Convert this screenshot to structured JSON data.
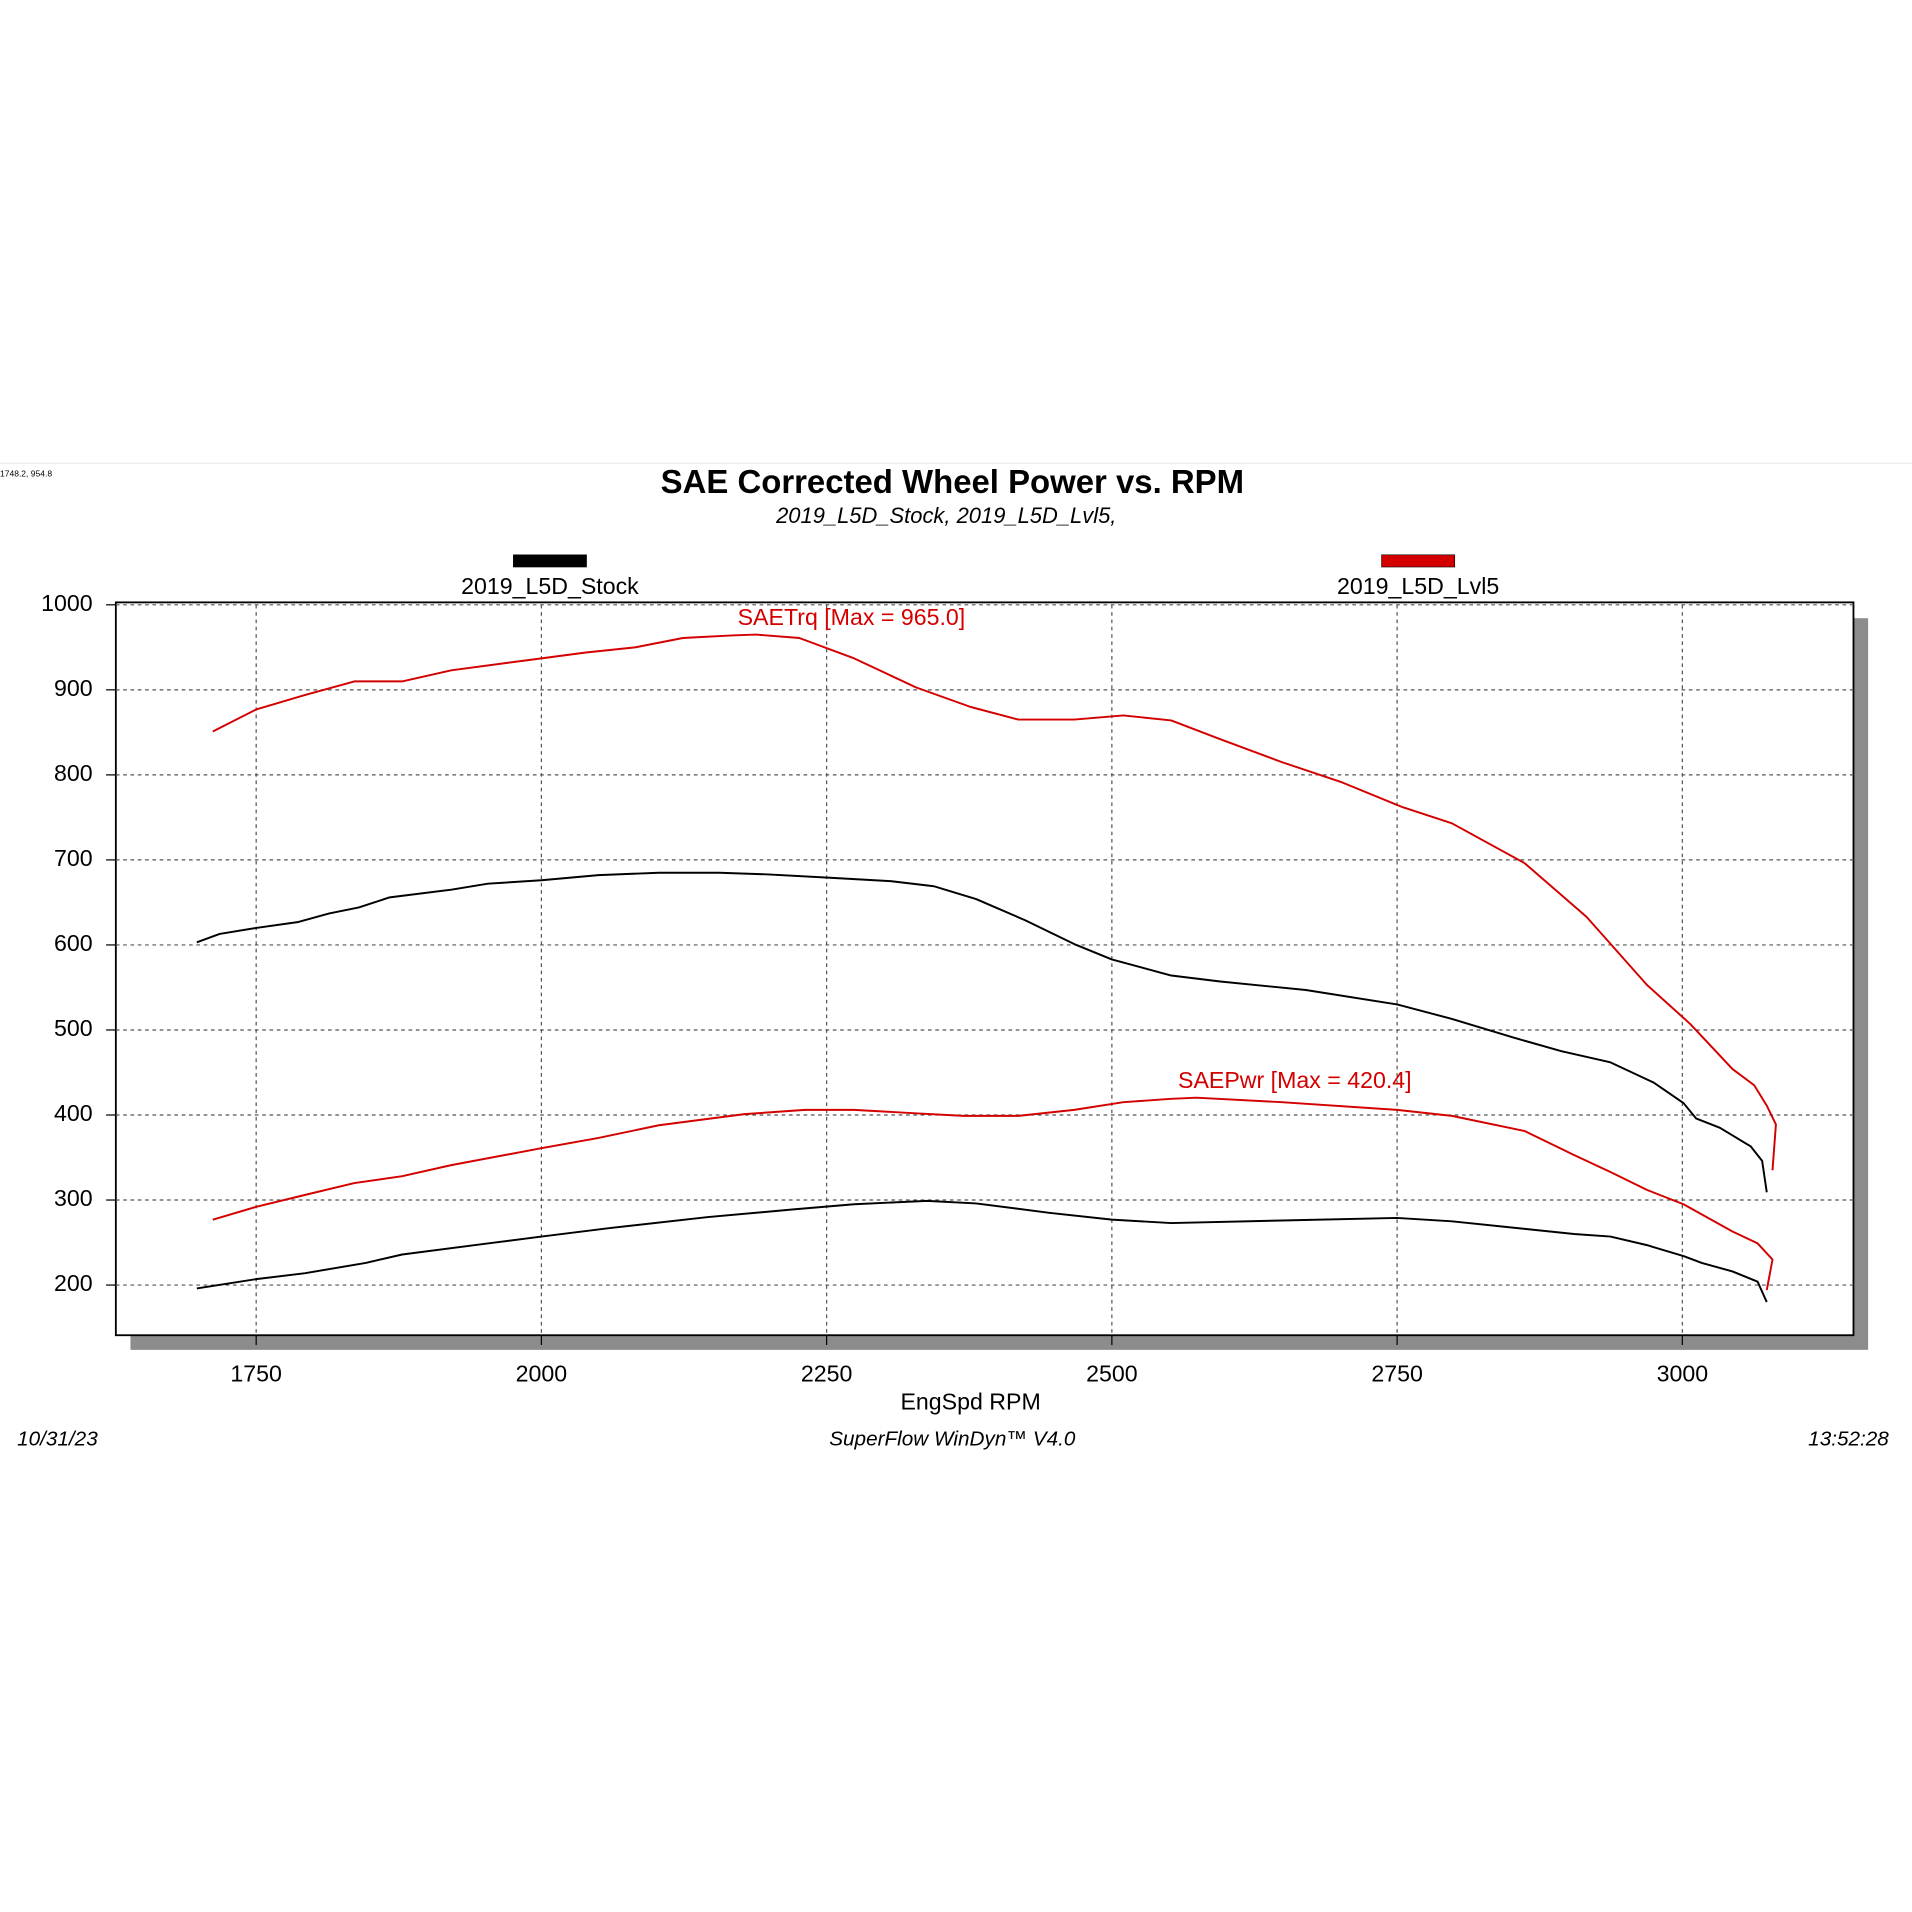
{
  "chart_data": {
    "type": "line",
    "title": "SAE Corrected Wheel Power vs. RPM",
    "subtitle": "2019_L5D_Stock, 2019_L5D_Lvl5,",
    "x_label": "EngSpd RPM",
    "cursor_readout": "1748.2, 954.8",
    "footer": {
      "date": "10/31/23",
      "software": "SuperFlow WinDyn™ V4.0",
      "time": "13:52:28"
    },
    "xlim": [
      1627,
      3150
    ],
    "xticks": [
      1750,
      2000,
      2250,
      2500,
      2750,
      3000
    ],
    "ylim": [
      141,
      1000
    ],
    "yticks": [
      200,
      300,
      400,
      500,
      600,
      700,
      800,
      900,
      1000
    ],
    "grid": true,
    "series": [
      {
        "name": "2019_L5D_Stock",
        "color": "#000000",
        "torque": {
          "x": [
            1698,
            1718,
            1750,
            1787,
            1814,
            1840,
            1867,
            1921,
            1953,
            2000,
            2050,
            2103,
            2156,
            2199,
            2253,
            2306,
            2344,
            2381,
            2424,
            2467,
            2500,
            2552,
            2595,
            2670,
            2750,
            2798,
            2852,
            2894,
            2937,
            2975,
            3001,
            3012,
            3033,
            3060,
            3070,
            3074
          ],
          "values": [
            603,
            613,
            620,
            627,
            637,
            644,
            656,
            665,
            672,
            676,
            682,
            685,
            685,
            683,
            679,
            675,
            669,
            654,
            629,
            601,
            583,
            564,
            557,
            547,
            530,
            513,
            491,
            475,
            462,
            438,
            414,
            396,
            385,
            363,
            346,
            309
          ]
        },
        "power": {
          "x": [
            1698,
            1750,
            1793,
            1846,
            1878,
            1953,
            2000,
            2060,
            2146,
            2221,
            2274,
            2338,
            2381,
            2445,
            2500,
            2552,
            2649,
            2750,
            2798,
            2862,
            2905,
            2937,
            2969,
            3001,
            3017,
            3044,
            3066,
            3074
          ],
          "values": [
            196,
            207,
            214,
            226,
            236,
            249,
            257,
            267,
            280,
            289,
            295,
            299,
            296,
            285,
            277,
            273,
            276,
            279,
            275,
            266,
            260,
            257,
            247,
            234,
            226,
            216,
            204,
            180
          ]
        }
      },
      {
        "name": "2019_L5D_Lvl5",
        "color": "#d40000",
        "torque": {
          "annotation": "SAETrq [Max = 965.0]",
          "x": [
            1712,
            1750,
            1793,
            1836,
            1878,
            1921,
            2000,
            2039,
            2082,
            2124,
            2167,
            2188,
            2226,
            2274,
            2328,
            2376,
            2418,
            2467,
            2510,
            2552,
            2595,
            2649,
            2702,
            2755,
            2798,
            2862,
            2916,
            2969,
            3007,
            3044,
            3063,
            3074,
            3082,
            3079
          ],
          "values": [
            851,
            877,
            894,
            910,
            910,
            923,
            937,
            944,
            950,
            961,
            964,
            965,
            961,
            937,
            903,
            880,
            865,
            865,
            870,
            864,
            842,
            815,
            791,
            762,
            743,
            696,
            633,
            553,
            507,
            454,
            435,
            411,
            389,
            335
          ]
        },
        "power": {
          "annotation": "SAEPwr [Max = 420.4]",
          "x": [
            1712,
            1750,
            1793,
            1836,
            1878,
            1921,
            2000,
            2050,
            2103,
            2178,
            2231,
            2274,
            2328,
            2370,
            2418,
            2467,
            2510,
            2552,
            2574,
            2649,
            2750,
            2798,
            2862,
            2905,
            2937,
            2969,
            3001,
            3044,
            3066,
            3079,
            3074
          ],
          "values": [
            277,
            292,
            306,
            320,
            328,
            341,
            361,
            373,
            388,
            401,
            406,
            406,
            402,
            399,
            399,
            406,
            415,
            419,
            420.4,
            415,
            406,
            399,
            381,
            353,
            333,
            312,
            295,
            263,
            249,
            230,
            194
          ]
        }
      }
    ]
  }
}
